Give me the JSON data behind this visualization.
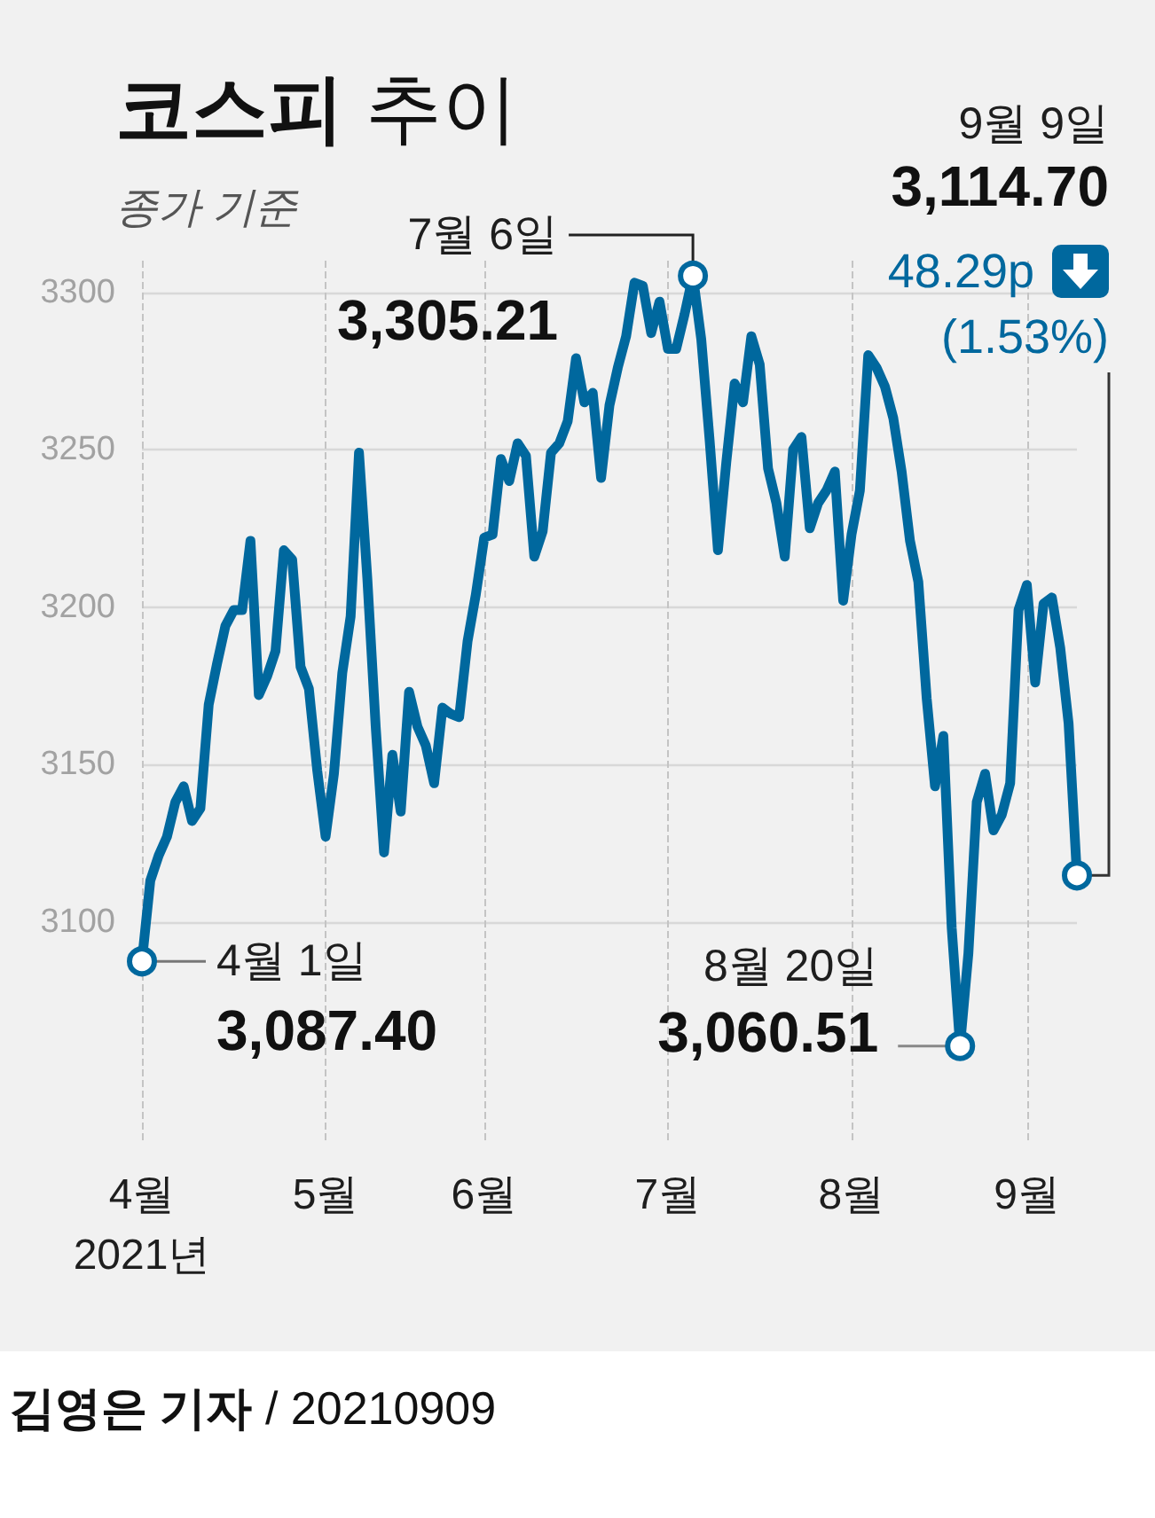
{
  "chart_data": {
    "type": "line",
    "title": "코스피 추이",
    "subtitle": "종가 기준",
    "categories": [
      "4월\n2021년",
      null,
      null,
      null,
      null,
      null,
      null,
      null,
      null,
      null,
      null,
      null,
      null,
      null,
      null,
      null,
      null,
      null,
      null,
      null,
      null,
      null,
      "5월",
      null,
      null,
      null,
      null,
      null,
      null,
      null,
      null,
      null,
      null,
      null,
      null,
      null,
      null,
      null,
      null,
      null,
      null,
      "6월",
      null,
      null,
      null,
      null,
      null,
      null,
      null,
      null,
      null,
      null,
      null,
      null,
      null,
      null,
      null,
      null,
      null,
      null,
      null,
      null,
      null,
      "7월",
      null,
      null,
      null,
      null,
      null,
      null,
      null,
      null,
      null,
      null,
      null,
      null,
      null,
      null,
      null,
      null,
      null,
      null,
      null,
      null,
      null,
      "8월",
      null,
      null,
      null,
      null,
      null,
      null,
      null,
      null,
      null,
      null,
      null,
      null,
      null,
      null,
      null,
      null,
      null,
      null,
      null,
      null,
      "9월",
      null,
      null,
      null,
      null,
      null,
      null
    ],
    "values": [
      3087.4,
      3113,
      3121,
      3127,
      3138,
      3143,
      3132,
      3136,
      3169,
      3182,
      3194,
      3199,
      3199,
      3221,
      3172,
      3178,
      3186,
      3218,
      3215,
      3181,
      3174,
      3148,
      3127,
      3147,
      3179,
      3197,
      3249,
      3209,
      3162,
      3122,
      3153,
      3135,
      3173,
      3162,
      3156,
      3144,
      3168,
      3166,
      3165,
      3189,
      3204,
      3222,
      3223,
      3247,
      3240,
      3252,
      3248,
      3216,
      3224,
      3249,
      3252,
      3259,
      3279,
      3265,
      3268,
      3241,
      3264,
      3276,
      3286,
      3303,
      3302,
      3287,
      3297,
      3282,
      3282,
      3293,
      3305.21,
      3285,
      3253,
      3218,
      3246,
      3271,
      3265,
      3286,
      3277,
      3244,
      3233,
      3216,
      3250,
      3254,
      3225,
      3233,
      3237,
      3243,
      3202,
      3223,
      3237,
      3280,
      3276,
      3270,
      3260,
      3243,
      3221,
      3208,
      3171,
      3143,
      3159,
      3098,
      3060.51,
      3090,
      3138,
      3147,
      3129,
      3134,
      3144,
      3199,
      3207,
      3176,
      3201,
      3203,
      3187,
      3163,
      3114.7
    ],
    "color": "#00689e",
    "marker": "none",
    "ylim": [
      3030,
      3310
    ],
    "yticks": [
      3100,
      3150,
      3200,
      3250,
      3300
    ],
    "grid": true,
    "annotations": [
      "4월 1일\n3,087.40",
      "7월 6일\n3,305.21",
      "8월 20일\n3,060.51",
      "9월 9일\n3,114.70\n48.29p\n(1.53%)",
      "김영은 기자 / 20210909"
    ]
  }
}
